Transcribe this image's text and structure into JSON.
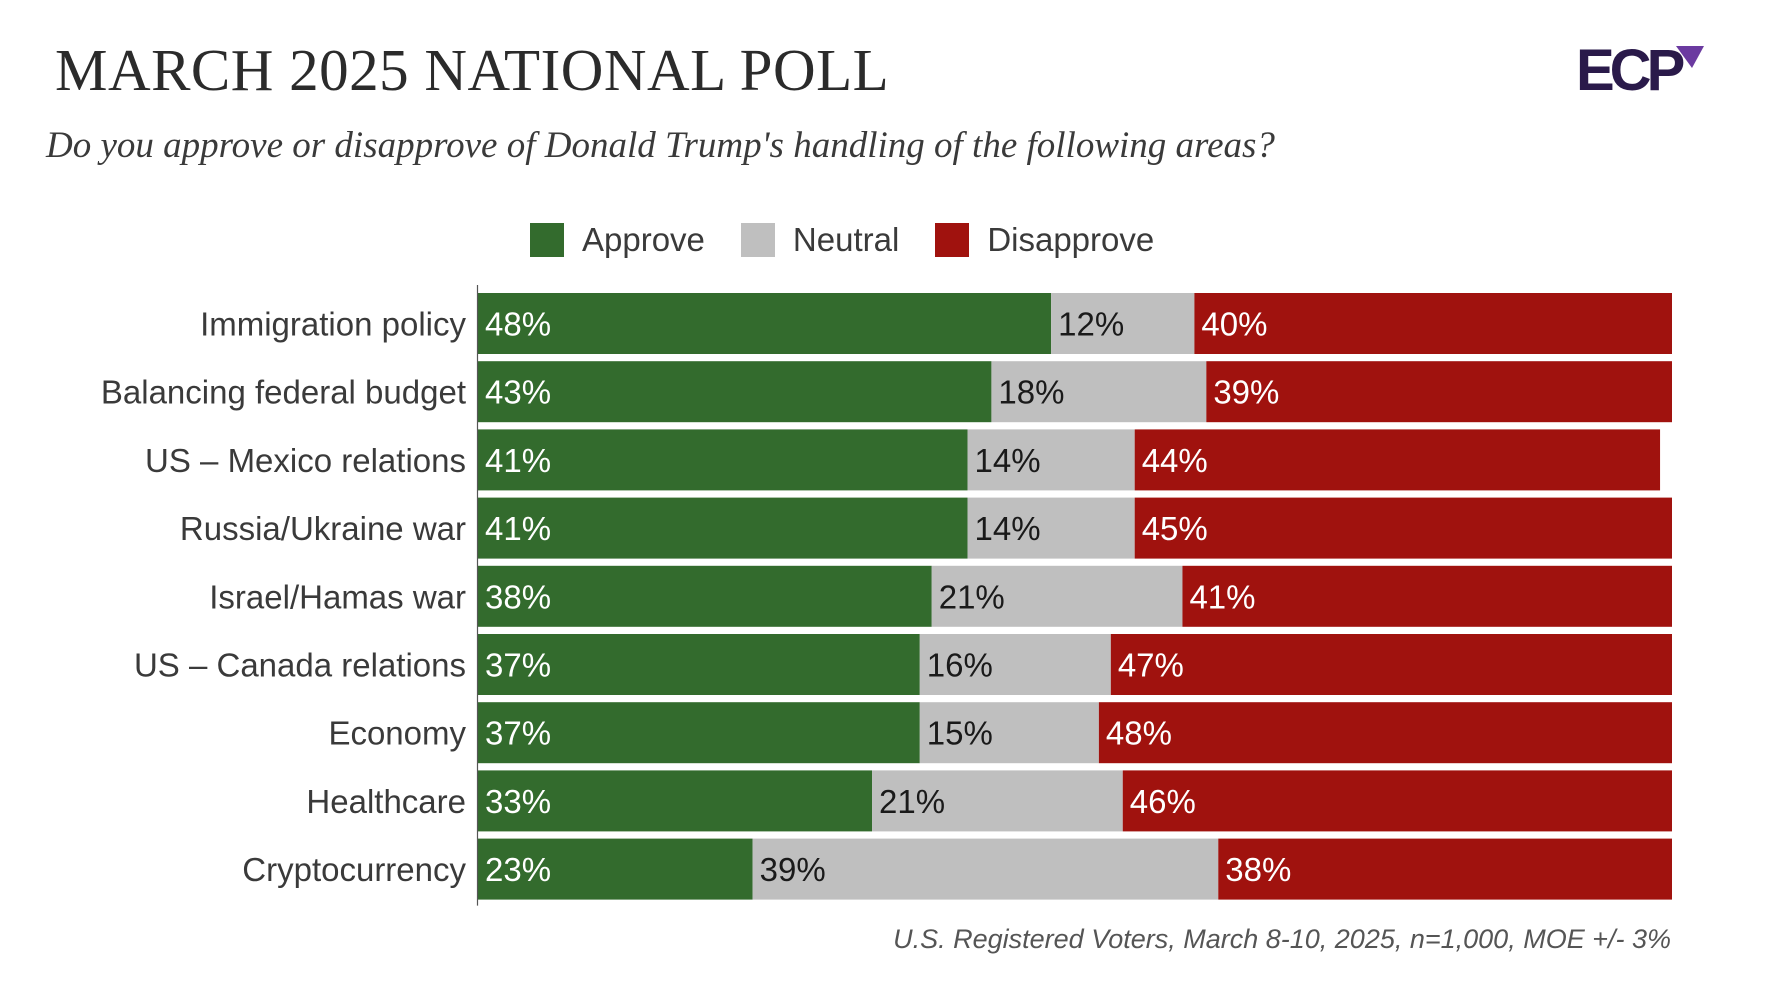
{
  "header": {
    "title": "MARCH 2025 NATIONAL POLL",
    "subtitle": "Do you approve or disapprove of Donald Trump's handling of the following areas?",
    "logo_text": "ECP"
  },
  "footer": {
    "source": "U.S. Registered Voters, March 8-10, 2025, n=1,000, MOE +/- 3%"
  },
  "colors": {
    "approve": "#336b2d",
    "neutral": "#bfbfbf",
    "disapprove": "#a0120e",
    "logo": "#2a1a4a",
    "logo_accent": "#6b3aa0"
  },
  "chart_data": {
    "type": "bar",
    "orientation": "horizontal",
    "stacked": true,
    "xlim": [
      0,
      100
    ],
    "legend_position": "top",
    "categories": [
      "Immigration policy",
      "Balancing federal budget",
      "US – Mexico relations",
      "Russia/Ukraine war",
      "Israel/Hamas war",
      "US – Canada relations",
      "Economy",
      "Healthcare",
      "Cryptocurrency"
    ],
    "series": [
      {
        "name": "Approve",
        "values": [
          48,
          43,
          41,
          41,
          38,
          37,
          37,
          33,
          23
        ]
      },
      {
        "name": "Neutral",
        "values": [
          12,
          18,
          14,
          14,
          21,
          16,
          15,
          21,
          39
        ]
      },
      {
        "name": "Disapprove",
        "values": [
          40,
          39,
          44,
          45,
          41,
          47,
          48,
          46,
          38
        ]
      }
    ]
  }
}
